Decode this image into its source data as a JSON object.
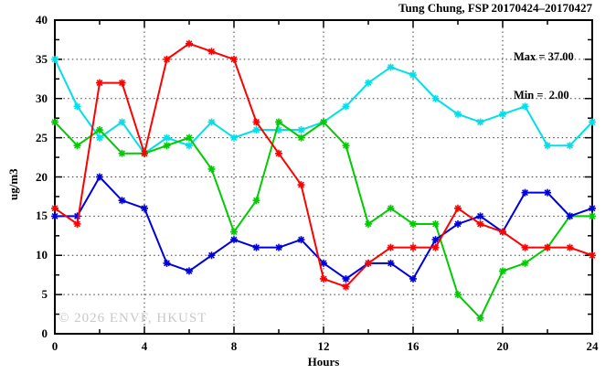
{
  "header": {
    "title": "Tung Chung, FSP 20170424–20170427"
  },
  "annotation": {
    "max_label": "Max = 37.00",
    "min_label": "Min =  2.00"
  },
  "watermark": "© 2026 ENVF, HKUST",
  "chart_data": {
    "type": "line",
    "title": "Tung Chung, FSP 20170424–20170427",
    "xlabel": "Hours",
    "ylabel": "ug/m3",
    "xlim": [
      0,
      24
    ],
    "ylim": [
      0,
      40
    ],
    "grid": true,
    "x_major_ticks": [
      0,
      4,
      8,
      12,
      16,
      20,
      24
    ],
    "x_minor_step": 2,
    "y_major_ticks": [
      0,
      5,
      10,
      15,
      20,
      25,
      30,
      35,
      40
    ],
    "y_minor_step": 2.5,
    "x": [
      0,
      1,
      2,
      3,
      4,
      5,
      6,
      7,
      8,
      9,
      10,
      11,
      12,
      13,
      14,
      15,
      16,
      17,
      18,
      19,
      20,
      21,
      22,
      23,
      24
    ],
    "series": [
      {
        "name": "cyan",
        "color": "#00e0e8",
        "values": [
          35,
          29,
          25,
          27,
          23,
          25,
          24,
          27,
          25,
          26,
          26,
          26,
          27,
          29,
          32,
          34,
          33,
          30,
          28,
          27,
          28,
          29,
          24,
          24,
          27
        ]
      },
      {
        "name": "green",
        "color": "#00cc00",
        "values": [
          27,
          24,
          26,
          23,
          23,
          24,
          25,
          21,
          13,
          17,
          27,
          25,
          27,
          24,
          14,
          16,
          14,
          14,
          5,
          2,
          8,
          9,
          11,
          15,
          15
        ]
      },
      {
        "name": "blue",
        "color": "#0000dd",
        "values": [
          15,
          15,
          20,
          17,
          16,
          9,
          8,
          10,
          12,
          11,
          11,
          12,
          9,
          7,
          9,
          9,
          7,
          12,
          14,
          15,
          13,
          18,
          18,
          15,
          16
        ]
      },
      {
        "name": "red",
        "color": "#ff0000",
        "values": [
          16,
          14,
          32,
          32,
          23,
          35,
          37,
          36,
          35,
          27,
          23,
          19,
          7,
          6,
          9,
          11,
          11,
          11,
          16,
          14,
          13,
          11,
          11,
          11,
          10
        ]
      }
    ],
    "annotations": {
      "max": 37.0,
      "min": 2.0
    },
    "legend": "none"
  }
}
